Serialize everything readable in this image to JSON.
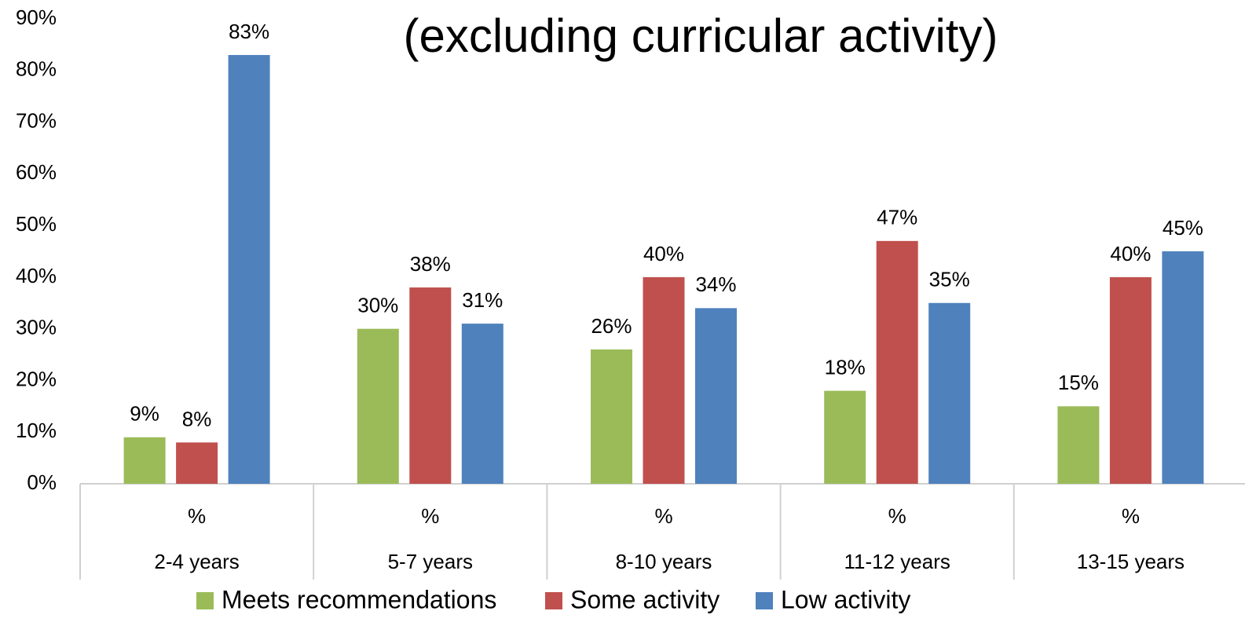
{
  "chart_data": {
    "type": "bar",
    "title": "(excluding curricular activity)",
    "categories": [
      "2-4 years",
      "5-7 years",
      "8-10 years",
      "11-12 years",
      "13-15 years"
    ],
    "sublabels": [
      "%",
      "%",
      "%",
      "%",
      "%"
    ],
    "series": [
      {
        "name": "Meets recommendations",
        "color": "#9bbb59",
        "values": [
          9,
          30,
          26,
          18,
          15
        ],
        "value_labels": [
          "9%",
          "30%",
          "26%",
          "18%",
          "15%"
        ]
      },
      {
        "name": "Some activity",
        "color": "#c0504d",
        "values": [
          8,
          38,
          40,
          47,
          40
        ],
        "value_labels": [
          "8%",
          "38%",
          "40%",
          "47%",
          "40%"
        ]
      },
      {
        "name": "Low activity",
        "color": "#4f81bd",
        "values": [
          83,
          31,
          34,
          35,
          45
        ],
        "value_labels": [
          "83%",
          "31%",
          "34%",
          "35%",
          "45%"
        ]
      }
    ],
    "ylim": [
      0,
      90
    ],
    "yticks": [
      {
        "value": 0,
        "label": "0%"
      },
      {
        "value": 10,
        "label": "10%"
      },
      {
        "value": 20,
        "label": "20%"
      },
      {
        "value": 30,
        "label": "30%"
      },
      {
        "value": 40,
        "label": "40%"
      },
      {
        "value": 50,
        "label": "50%"
      },
      {
        "value": 60,
        "label": "60%"
      },
      {
        "value": 70,
        "label": "70%"
      },
      {
        "value": 80,
        "label": "80%"
      },
      {
        "value": 90,
        "label": "90%"
      }
    ],
    "grid": false,
    "legend": "bottom"
  }
}
